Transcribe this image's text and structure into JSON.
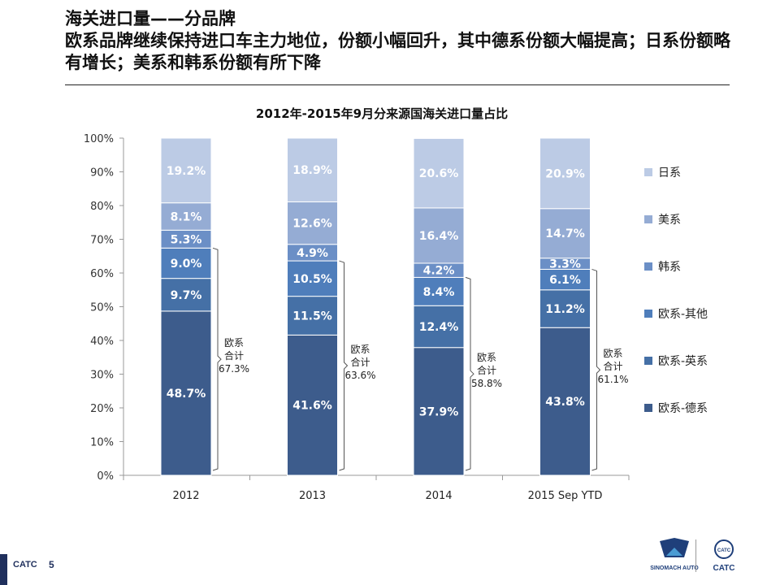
{
  "slide": {
    "title_line1": "海关进口量——分品牌",
    "title_line2": "欧系品牌继续保持进口车主力地位，份额小幅回升，其中德系份额大幅提高；日系份额略",
    "title_line3": "有增长；美系和韩系份额有所下降"
  },
  "footer": {
    "brand": "CATC",
    "page": "5"
  },
  "logos": {
    "left_text": "SINOMACH AUTO",
    "right_text": "CATC",
    "right_badge": "CATC"
  },
  "colors": {
    "de": "#3d5c8c",
    "uk": "#4570a6",
    "other": "#4f7ebb",
    "kr": "#6b8fc6",
    "us": "#95acd4",
    "jp": "#bccbe5",
    "axis": "#999999"
  },
  "chart_data": {
    "type": "bar",
    "stacked": true,
    "title": "2012年-2015年9月分来源国海关进口量占比",
    "categories": [
      "2012",
      "2013",
      "2014",
      "2015 Sep YTD"
    ],
    "ylim": [
      0,
      100
    ],
    "yticks": [
      "0%",
      "10%",
      "20%",
      "30%",
      "40%",
      "50%",
      "60%",
      "70%",
      "80%",
      "90%",
      "100%"
    ],
    "series": [
      {
        "name": "欧系-德系",
        "color_key": "de",
        "values": [
          48.7,
          41.6,
          37.9,
          43.8
        ],
        "labels": [
          "48.7%",
          "41.6%",
          "37.9%",
          "43.8%"
        ]
      },
      {
        "name": "欧系-英系",
        "color_key": "uk",
        "values": [
          9.7,
          11.5,
          12.4,
          11.2
        ],
        "labels": [
          "9.7%",
          "11.5%",
          "12.4%",
          "11.2%"
        ]
      },
      {
        "name": "欧系-其他",
        "color_key": "other",
        "values": [
          9.0,
          10.5,
          8.4,
          6.1
        ],
        "labels": [
          "9.0%",
          "10.5%",
          "8.4%",
          "6.1%"
        ]
      },
      {
        "name": "韩系",
        "color_key": "kr",
        "values": [
          5.3,
          4.9,
          4.2,
          3.3
        ],
        "labels": [
          "5.3%",
          "4.9%",
          "4.2%",
          "3.3%"
        ]
      },
      {
        "name": "美系",
        "color_key": "us",
        "values": [
          8.1,
          12.6,
          16.4,
          14.7
        ],
        "labels": [
          "8.1%",
          "12.6%",
          "16.4%",
          "14.7%"
        ]
      },
      {
        "name": "日系",
        "color_key": "jp",
        "values": [
          19.2,
          18.9,
          20.6,
          20.9
        ],
        "labels": [
          "19.2%",
          "18.9%",
          "20.6%",
          "20.9%"
        ]
      }
    ],
    "legend_order": [
      "日系",
      "美系",
      "韩系",
      "欧系-其他",
      "欧系-英系",
      "欧系-德系"
    ],
    "legend_position": "right",
    "annotations": [
      {
        "line1": "欧系",
        "line2": "合计",
        "value": "67.3%"
      },
      {
        "line1": "欧系",
        "line2": "合计",
        "value": "63.6%"
      },
      {
        "line1": "欧系",
        "line2": "合计",
        "value": "58.8%"
      },
      {
        "line1": "欧系",
        "line2": "合计",
        "value": "61.1%"
      }
    ],
    "grid": false
  }
}
